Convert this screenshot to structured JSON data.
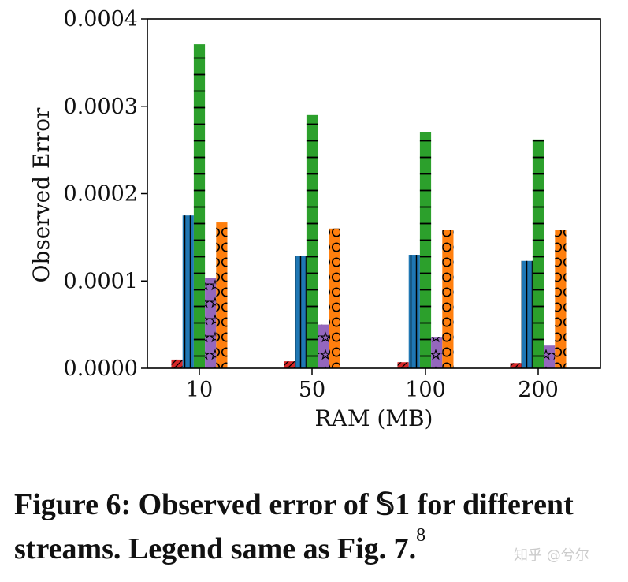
{
  "chart_data": {
    "type": "bar",
    "categories": [
      "10",
      "50",
      "100",
      "200"
    ],
    "xlabel": "RAM (MB)",
    "ylabel": "Observed Error",
    "ylim": [
      0,
      0.0004
    ],
    "yticks": [
      "0.0000",
      "0.0001",
      "0.0002",
      "0.0003",
      "0.0004"
    ],
    "legend": "none (same as Fig. 7)",
    "series": [
      {
        "name": "red",
        "color": "#d62728",
        "hatch": "diagonal",
        "values": [
          1e-05,
          8e-06,
          7e-06,
          6e-06
        ]
      },
      {
        "name": "blue",
        "color": "#1f77b4",
        "hatch": "vertical",
        "values": [
          0.000175,
          0.000129,
          0.00013,
          0.000123
        ]
      },
      {
        "name": "green",
        "color": "#2ca02c",
        "hatch": "horizontal",
        "values": [
          0.000371,
          0.00029,
          0.00027,
          0.000262
        ]
      },
      {
        "name": "purple",
        "color": "#9467bd",
        "hatch": "star",
        "values": [
          0.000103,
          5e-05,
          3.6e-05,
          2.6e-05
        ]
      },
      {
        "name": "orange",
        "color": "#ff7f0e",
        "hatch": "circle",
        "values": [
          0.000167,
          0.00016,
          0.000158,
          0.000158
        ]
      }
    ]
  },
  "caption": {
    "text": "Figure 6: Observed error of 𝕊1 for different streams. Legend same as Fig. 7.",
    "footnote": "8"
  },
  "watermark": "知乎 @兮尔"
}
